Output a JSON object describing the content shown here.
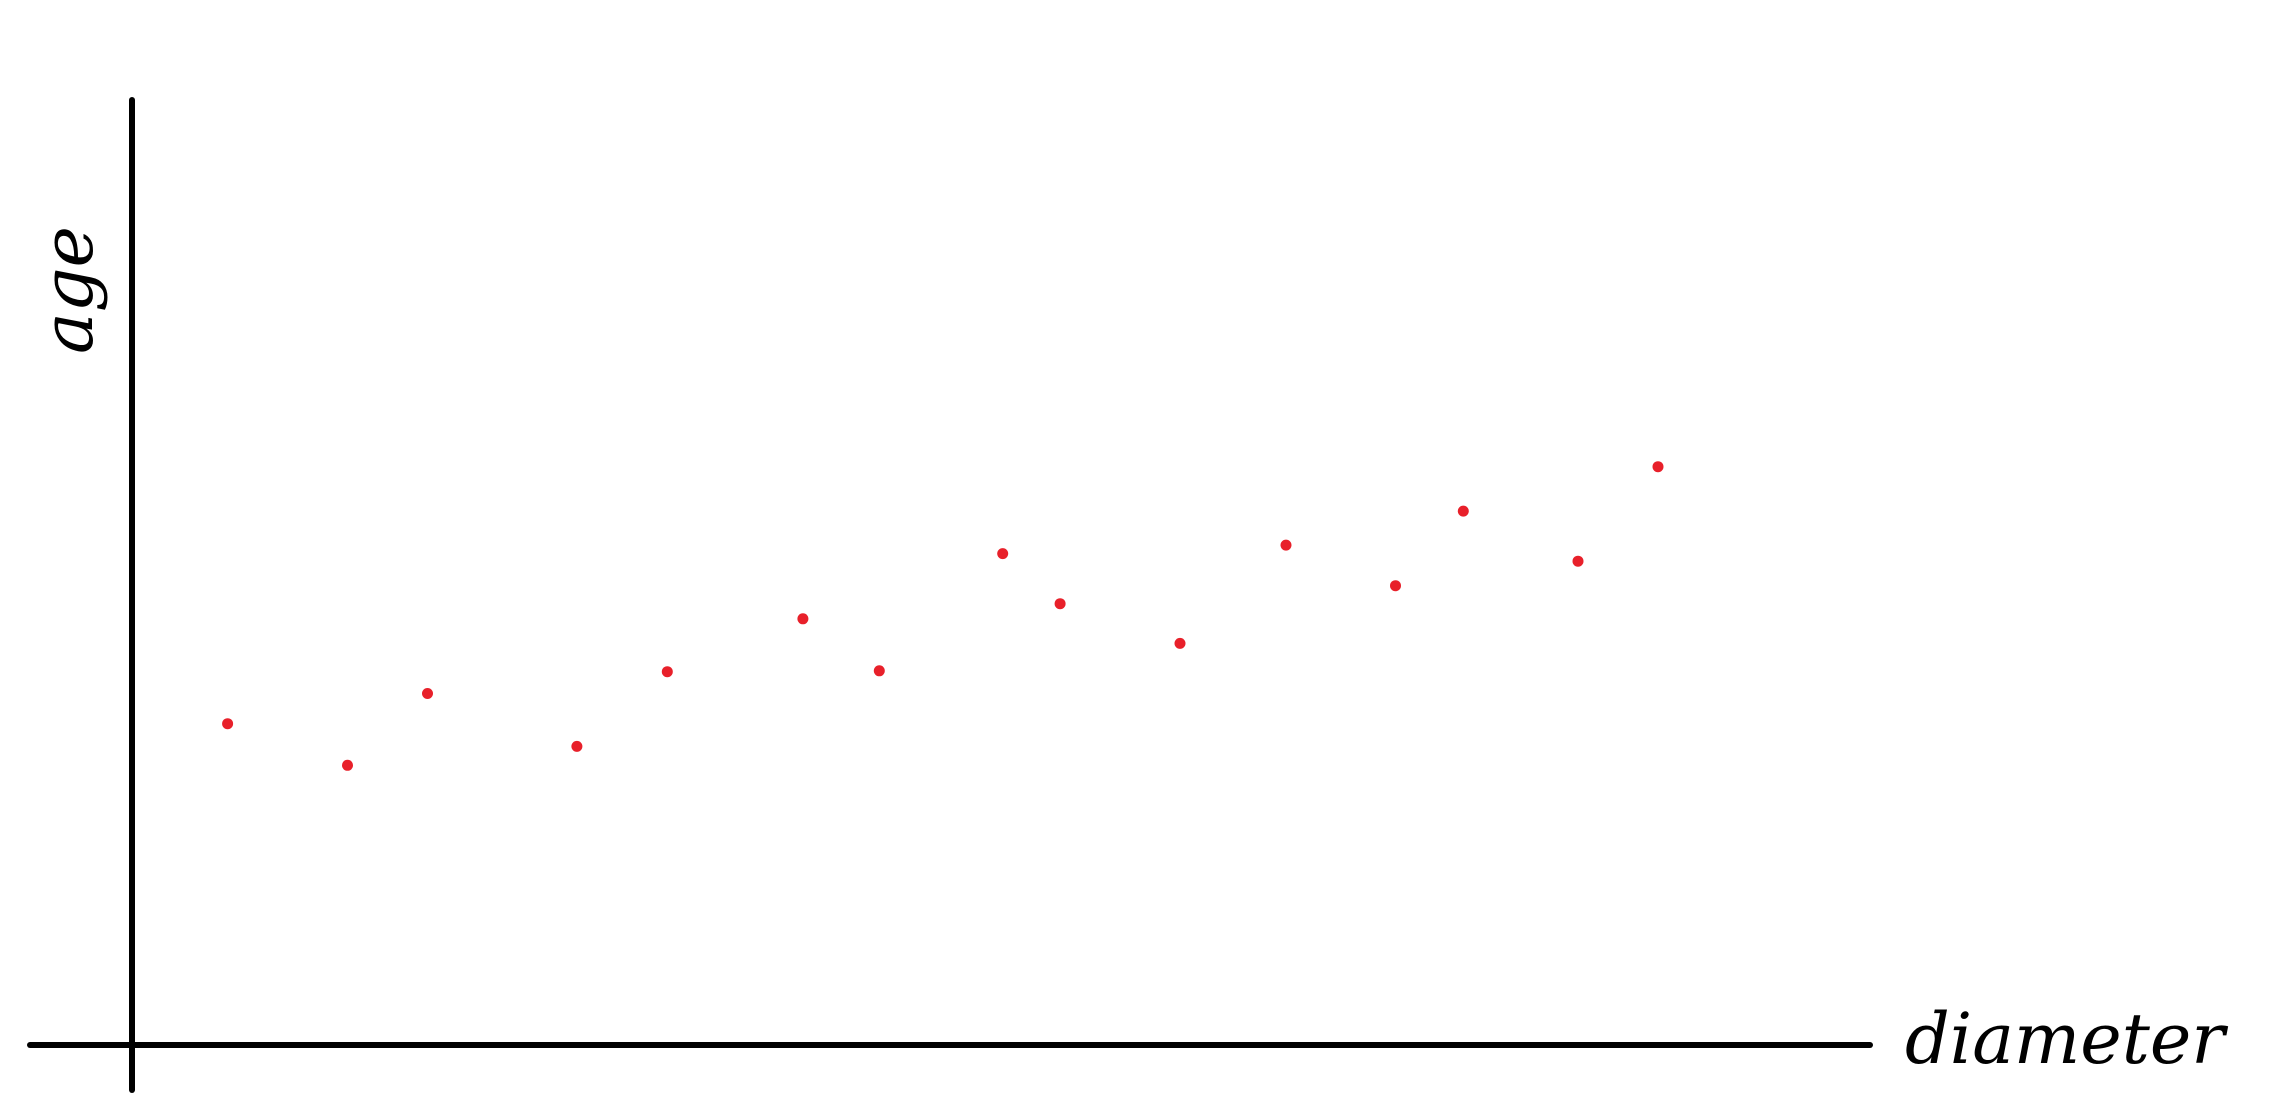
{
  "chart_data": {
    "type": "scatter",
    "title": "",
    "xlabel": "diameter",
    "ylabel": "age",
    "grid": false,
    "legend": false,
    "xlim": [
      0,
      100
    ],
    "ylim": [
      0,
      100
    ],
    "point_color": "#e8202a",
    "axis_color": "#000000",
    "points": [
      {
        "x": 5.5,
        "y": 34
      },
      {
        "x": 12.4,
        "y": 29.6
      },
      {
        "x": 17,
        "y": 37.2
      },
      {
        "x": 25.6,
        "y": 31.6
      },
      {
        "x": 30.8,
        "y": 39.5
      },
      {
        "x": 38.6,
        "y": 45.1
      },
      {
        "x": 43,
        "y": 39.6
      },
      {
        "x": 50.1,
        "y": 52
      },
      {
        "x": 53.4,
        "y": 46.7
      },
      {
        "x": 60.3,
        "y": 42.5
      },
      {
        "x": 66.4,
        "y": 52.9
      },
      {
        "x": 72.7,
        "y": 48.6
      },
      {
        "x": 76.6,
        "y": 56.5
      },
      {
        "x": 83.2,
        "y": 51.2
      },
      {
        "x": 87.8,
        "y": 61.2
      }
    ]
  }
}
